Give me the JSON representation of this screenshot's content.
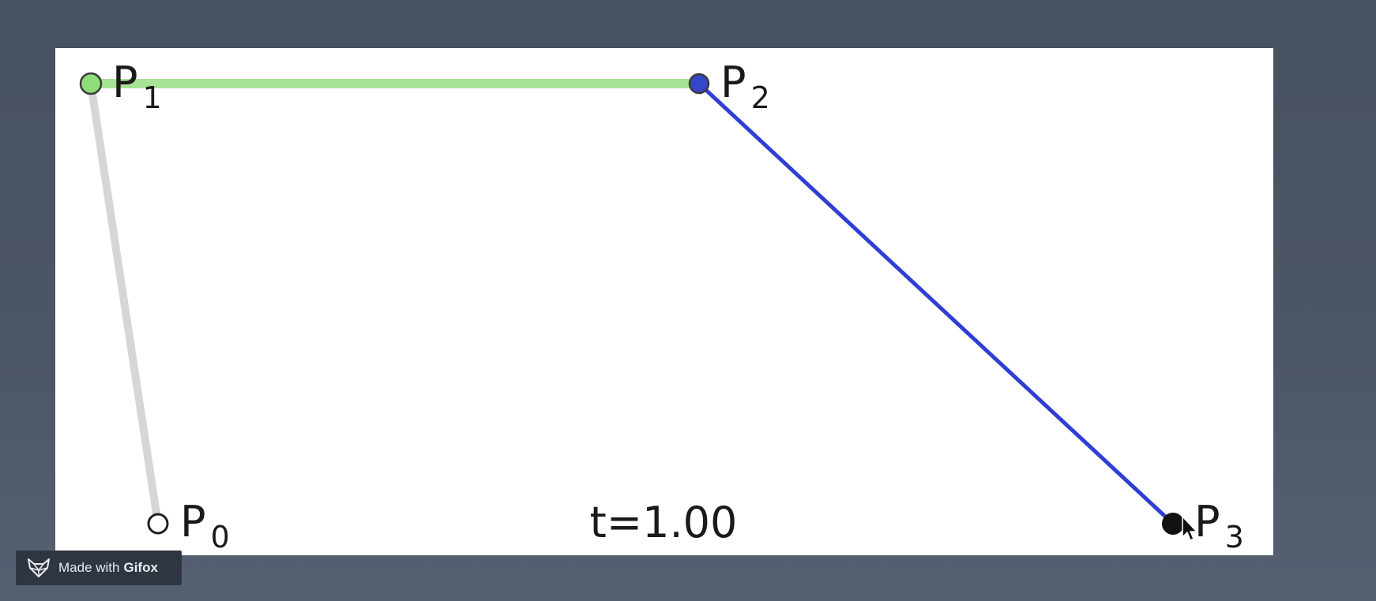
{
  "diagram": {
    "points": [
      {
        "id": "P0",
        "letter": "P",
        "sub": "0",
        "fill": "#ffffff",
        "stroke": "#222222"
      },
      {
        "id": "P1",
        "letter": "P",
        "sub": "1",
        "fill": "#8fdc78",
        "stroke": "#3b3b3b"
      },
      {
        "id": "P2",
        "letter": "P",
        "sub": "2",
        "fill": "#3347c8",
        "stroke": "#3b3b3b"
      },
      {
        "id": "P3",
        "letter": "P",
        "sub": "3",
        "fill": "#111111",
        "stroke": "#111111"
      }
    ],
    "segments": [
      {
        "from": "P0",
        "to": "P1",
        "color": "#d6d6d6"
      },
      {
        "from": "P1",
        "to": "P2",
        "color": "#a6e394"
      },
      {
        "from": "P2",
        "to": "P3",
        "color": "#2f3fd4"
      }
    ],
    "t_label": "t=1.00"
  },
  "badge": {
    "prefix": "Made with",
    "brand": "Gifox",
    "icon": "fox-icon"
  },
  "cursor": {
    "icon": "mouse-pointer-icon"
  }
}
